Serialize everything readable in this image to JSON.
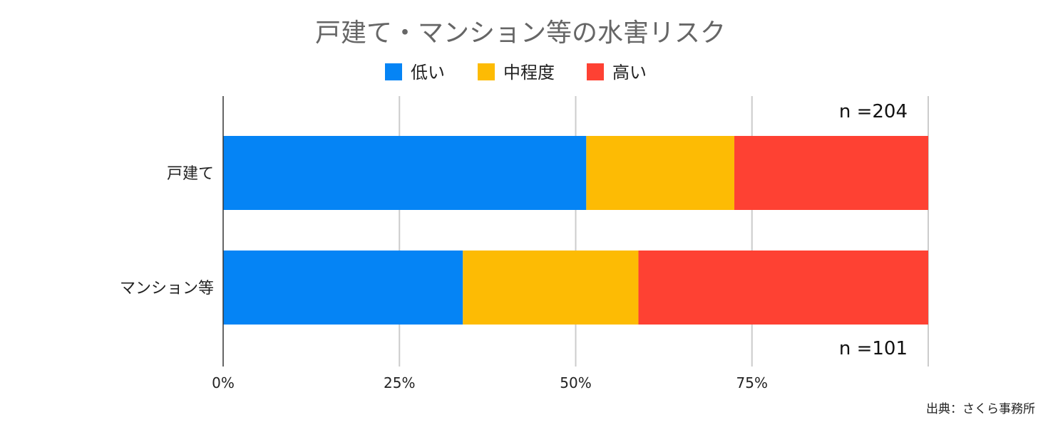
{
  "chart_data": {
    "type": "bar",
    "orientation": "horizontal",
    "stacked": true,
    "title": "戸建て・マンション等の水害リスク",
    "categories": [
      "戸建て",
      "マンション等"
    ],
    "series": [
      {
        "name": "低い",
        "color": "#0584F5",
        "values": [
          51.5,
          34.0
        ]
      },
      {
        "name": "中程度",
        "color": "#FDBB04",
        "values": [
          21.0,
          24.9
        ]
      },
      {
        "name": "高い",
        "color": "#FE4133",
        "values": [
          27.5,
          41.1
        ]
      }
    ],
    "xlim": [
      0,
      100
    ],
    "xticks": [
      "0%",
      "25%",
      "50%",
      "75%"
    ],
    "grid": true,
    "legend": "top",
    "annotations": [
      "n =204",
      "n =101"
    ],
    "source": "出典：さくら事務所"
  }
}
